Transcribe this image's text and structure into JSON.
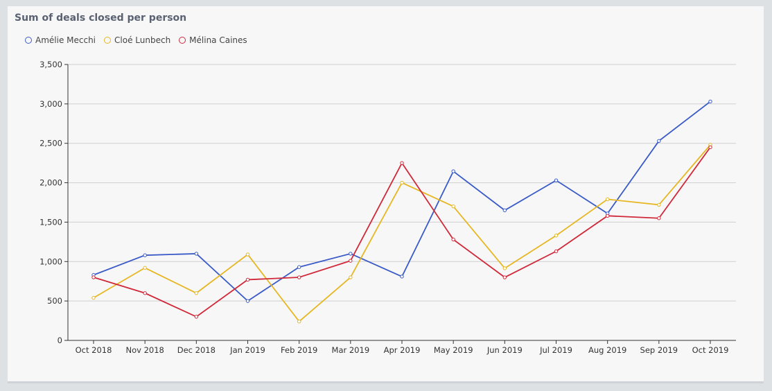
{
  "chart_data": {
    "type": "line",
    "title": "Sum of deals closed per person",
    "xlabel": "",
    "ylabel": "",
    "ylim": [
      0,
      3500
    ],
    "yticks": [
      0,
      500,
      1000,
      1500,
      2000,
      2500,
      3000,
      3500
    ],
    "ytick_labels": [
      "0",
      "500",
      "1,000",
      "1,500",
      "2,000",
      "2,500",
      "3,000",
      "3,500"
    ],
    "grid": true,
    "legend_position": "top-left",
    "categories": [
      "Oct 2018",
      "Nov 2018",
      "Dec 2018",
      "Jan 2019",
      "Feb 2019",
      "Mar 2019",
      "Apr 2019",
      "May 2019",
      "Jun 2019",
      "Jul 2019",
      "Aug 2019",
      "Sep 2019",
      "Oct 2019"
    ],
    "series": [
      {
        "name": "Amélie Mecchi",
        "color": "#3a5bc7",
        "values": [
          830,
          1080,
          1100,
          500,
          930,
          1100,
          810,
          2145,
          1650,
          2030,
          1610,
          2530,
          3030
        ]
      },
      {
        "name": "Cloé Lunbech",
        "color": "#e6b722",
        "values": [
          540,
          920,
          600,
          1090,
          240,
          800,
          2000,
          1700,
          915,
          1330,
          1790,
          1720,
          2480
        ]
      },
      {
        "name": "Mélina Caines",
        "color": "#d02838",
        "values": [
          800,
          600,
          300,
          770,
          800,
          1010,
          2250,
          1280,
          800,
          1130,
          1580,
          1550,
          2450
        ]
      }
    ]
  }
}
